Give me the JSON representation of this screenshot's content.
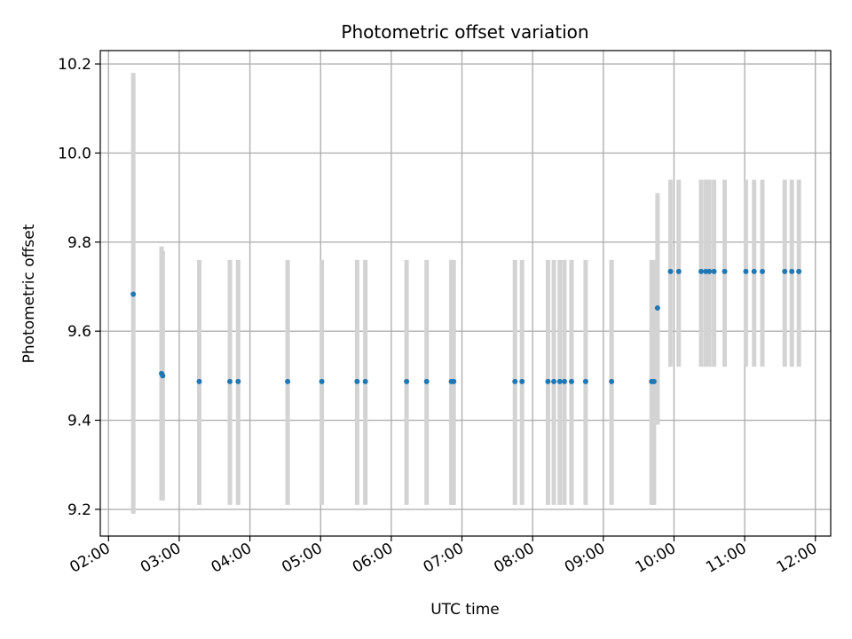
{
  "chart_data": {
    "type": "scatter",
    "title": "Photometric offset variation",
    "xlabel": "UTC time",
    "ylabel": "Photometric offset",
    "xlim": [
      "01:53",
      "12:13"
    ],
    "ylim": [
      9.14,
      10.23
    ],
    "x_ticks": [
      "02:00",
      "03:00",
      "04:00",
      "05:00",
      "06:00",
      "07:00",
      "08:00",
      "09:00",
      "10:00",
      "11:00",
      "12:00"
    ],
    "y_ticks": [
      "9.2",
      "9.4",
      "9.6",
      "9.8",
      "10.0",
      "10.2"
    ],
    "grid": true,
    "marker_color": "#1f77b4",
    "errorbar_color": "#d3d3d3",
    "points": [
      {
        "x": "02:21",
        "y": 9.683,
        "ylow": 9.19,
        "yhigh": 10.18
      },
      {
        "x": "02:45",
        "y": 9.505,
        "ylow": 9.22,
        "yhigh": 9.79
      },
      {
        "x": "02:46",
        "y": 9.5,
        "ylow": 9.22,
        "yhigh": 9.78
      },
      {
        "x": "03:17",
        "y": 9.487,
        "ylow": 9.21,
        "yhigh": 9.76
      },
      {
        "x": "03:43",
        "y": 9.487,
        "ylow": 9.21,
        "yhigh": 9.76
      },
      {
        "x": "03:50",
        "y": 9.487,
        "ylow": 9.21,
        "yhigh": 9.76
      },
      {
        "x": "04:32",
        "y": 9.487,
        "ylow": 9.21,
        "yhigh": 9.76
      },
      {
        "x": "05:01",
        "y": 9.487,
        "ylow": 9.21,
        "yhigh": 9.76
      },
      {
        "x": "05:31",
        "y": 9.487,
        "ylow": 9.21,
        "yhigh": 9.76
      },
      {
        "x": "05:38",
        "y": 9.487,
        "ylow": 9.21,
        "yhigh": 9.76
      },
      {
        "x": "06:13",
        "y": 9.487,
        "ylow": 9.21,
        "yhigh": 9.76
      },
      {
        "x": "06:30",
        "y": 9.487,
        "ylow": 9.21,
        "yhigh": 9.76
      },
      {
        "x": "06:51",
        "y": 9.487,
        "ylow": 9.21,
        "yhigh": 9.76
      },
      {
        "x": "06:53",
        "y": 9.487,
        "ylow": 9.21,
        "yhigh": 9.76
      },
      {
        "x": "07:45",
        "y": 9.487,
        "ylow": 9.21,
        "yhigh": 9.76
      },
      {
        "x": "07:51",
        "y": 9.487,
        "ylow": 9.21,
        "yhigh": 9.76
      },
      {
        "x": "08:13",
        "y": 9.487,
        "ylow": 9.21,
        "yhigh": 9.76
      },
      {
        "x": "08:18",
        "y": 9.487,
        "ylow": 9.21,
        "yhigh": 9.76
      },
      {
        "x": "08:23",
        "y": 9.487,
        "ylow": 9.21,
        "yhigh": 9.76
      },
      {
        "x": "08:27",
        "y": 9.487,
        "ylow": 9.21,
        "yhigh": 9.76
      },
      {
        "x": "08:33",
        "y": 9.487,
        "ylow": 9.21,
        "yhigh": 9.76
      },
      {
        "x": "08:45",
        "y": 9.487,
        "ylow": 9.21,
        "yhigh": 9.76
      },
      {
        "x": "09:07",
        "y": 9.487,
        "ylow": 9.21,
        "yhigh": 9.76
      },
      {
        "x": "09:41",
        "y": 9.487,
        "ylow": 9.21,
        "yhigh": 9.76
      },
      {
        "x": "09:43",
        "y": 9.487,
        "ylow": 9.21,
        "yhigh": 9.76
      },
      {
        "x": "09:46",
        "y": 9.652,
        "ylow": 9.39,
        "yhigh": 9.91
      },
      {
        "x": "09:57",
        "y": 9.734,
        "ylow": 9.52,
        "yhigh": 9.94
      },
      {
        "x": "10:04",
        "y": 9.734,
        "ylow": 9.52,
        "yhigh": 9.94
      },
      {
        "x": "10:23",
        "y": 9.734,
        "ylow": 9.52,
        "yhigh": 9.94
      },
      {
        "x": "10:27",
        "y": 9.734,
        "ylow": 9.52,
        "yhigh": 9.94
      },
      {
        "x": "10:30",
        "y": 9.734,
        "ylow": 9.52,
        "yhigh": 9.94
      },
      {
        "x": "10:34",
        "y": 9.734,
        "ylow": 9.52,
        "yhigh": 9.94
      },
      {
        "x": "10:43",
        "y": 9.734,
        "ylow": 9.52,
        "yhigh": 9.94
      },
      {
        "x": "11:01",
        "y": 9.734,
        "ylow": 9.52,
        "yhigh": 9.94
      },
      {
        "x": "11:08",
        "y": 9.734,
        "ylow": 9.52,
        "yhigh": 9.94
      },
      {
        "x": "11:15",
        "y": 9.734,
        "ylow": 9.52,
        "yhigh": 9.94
      },
      {
        "x": "11:34",
        "y": 9.734,
        "ylow": 9.52,
        "yhigh": 9.94
      },
      {
        "x": "11:40",
        "y": 9.734,
        "ylow": 9.52,
        "yhigh": 9.94
      },
      {
        "x": "11:46",
        "y": 9.734,
        "ylow": 9.52,
        "yhigh": 9.94
      }
    ]
  }
}
